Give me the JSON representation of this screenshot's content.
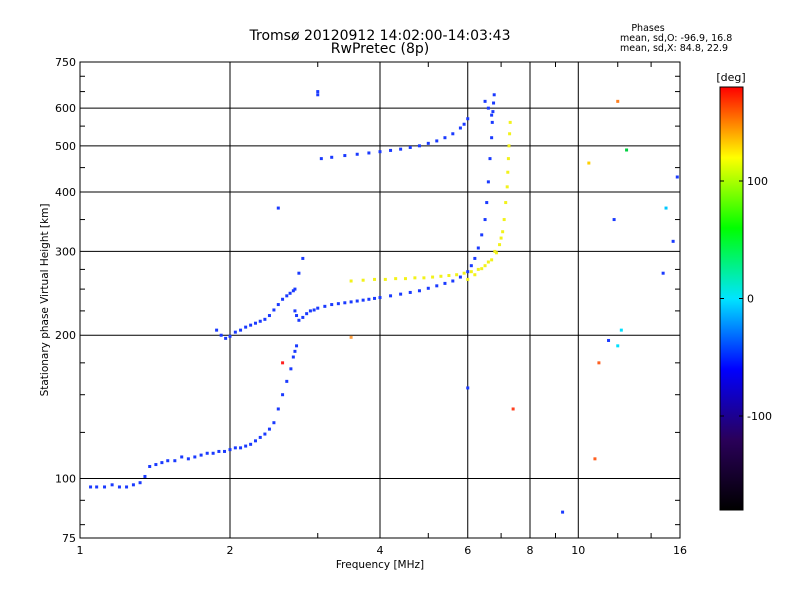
{
  "window": {
    "title_line1": "Tromsø 20120912 14:02:00-14:03:43",
    "title_line2": "RwPretec (8p)"
  },
  "stats": {
    "heading": "Phases",
    "line1": "mean, sd,O: -96.9, 16.8",
    "line2": "mean, sd,X:  84.8, 22.9"
  },
  "colorbar": {
    "label": "[deg]",
    "ticks": [
      "100",
      "0",
      "-100"
    ],
    "tick_values": [
      100,
      0,
      -100
    ],
    "range": [
      -180,
      180
    ],
    "colors": [
      "#000000",
      "#2a005a",
      "#0000ff",
      "#00e5ff",
      "#00ff00",
      "#ffff00",
      "#ff0000"
    ]
  },
  "chart_data": {
    "type": "scatter",
    "xlabel": "Frequency [MHz]",
    "ylabel": "Stationary phase Virtual Height [km]",
    "xscale": "log",
    "yscale": "log",
    "xlim": [
      1,
      16
    ],
    "ylim": [
      75,
      750
    ],
    "xticks": [
      1,
      2,
      4,
      6,
      8,
      10,
      16
    ],
    "xtick_labels": [
      "1",
      "2",
      "4",
      "6",
      "8",
      "10",
      "16"
    ],
    "yticks": [
      75,
      100,
      200,
      300,
      400,
      500,
      600,
      750
    ],
    "ytick_labels": [
      "75",
      "100",
      "200",
      "300",
      "400",
      "500",
      "600",
      "750"
    ],
    "grid": true,
    "series": [
      {
        "mode": "O",
        "color": "#1a3aff",
        "x": [
          1.05,
          1.08,
          1.12,
          1.16,
          1.2,
          1.24,
          1.28,
          1.32,
          1.35,
          1.38,
          1.42,
          1.46,
          1.5,
          1.55,
          1.6,
          1.65,
          1.7,
          1.75,
          1.8,
          1.85,
          1.9,
          1.95,
          2.0,
          2.05,
          2.1,
          2.15,
          2.2,
          2.25,
          2.3,
          2.35,
          2.4,
          2.45,
          2.5,
          2.55,
          2.6,
          2.65,
          2.68,
          2.7,
          2.72,
          1.88,
          1.92,
          1.96,
          2.0,
          2.05,
          2.1,
          2.15,
          2.2,
          2.25,
          2.3,
          2.35,
          2.4,
          2.45,
          2.5,
          2.55,
          2.6,
          2.64,
          2.68,
          2.7,
          2.72,
          2.75,
          2.8,
          2.85,
          2.9,
          2.95,
          3.0,
          3.1,
          3.2,
          3.3,
          3.4,
          3.5,
          3.6,
          3.7,
          3.8,
          3.9,
          4.0,
          4.2,
          4.4,
          4.6,
          4.8,
          5.0,
          5.2,
          5.4,
          5.6,
          5.8,
          6.0,
          6.1,
          6.2,
          6.3,
          6.4,
          6.5,
          6.55,
          6.6,
          6.65,
          6.7,
          6.72,
          6.74,
          6.76,
          6.78,
          3.05,
          3.2,
          3.4,
          3.6,
          3.8,
          4.0,
          4.2,
          4.4,
          4.6,
          4.8,
          5.0,
          5.2,
          5.4,
          5.6,
          5.8,
          5.9,
          6.0,
          2.7,
          2.75,
          2.8,
          3.0,
          6.5,
          6.6,
          6.7
        ],
        "y": [
          96,
          96,
          96,
          97,
          96,
          96,
          97,
          98,
          101,
          106,
          107,
          108,
          109,
          109,
          111,
          110,
          111,
          112,
          113,
          113,
          114,
          114,
          115,
          116,
          116,
          117,
          118,
          120,
          122,
          124,
          127,
          131,
          140,
          150,
          160,
          170,
          180,
          185,
          190,
          205,
          200,
          197,
          199,
          203,
          205,
          208,
          210,
          212,
          214,
          216,
          220,
          226,
          232,
          238,
          242,
          245,
          248,
          225,
          220,
          215,
          218,
          222,
          225,
          226,
          228,
          230,
          232,
          233,
          234,
          235,
          236,
          237,
          238,
          239,
          240,
          242,
          244,
          246,
          248,
          251,
          254,
          257,
          260,
          265,
          272,
          280,
          290,
          305,
          325,
          350,
          380,
          420,
          470,
          520,
          560,
          590,
          615,
          640,
          470,
          473,
          477,
          480,
          483,
          486,
          489,
          492,
          496,
          500,
          506,
          512,
          520,
          530,
          545,
          555,
          570,
          250,
          270,
          290,
          650,
          620,
          600,
          580
        ]
      },
      {
        "mode": "X",
        "color": "#f2f21a",
        "x": [
          3.5,
          3.7,
          3.9,
          4.1,
          4.3,
          4.5,
          4.7,
          4.9,
          5.1,
          5.3,
          5.5,
          5.7,
          5.9,
          6.1,
          6.3,
          6.5,
          6.7,
          6.85,
          6.95,
          7.05,
          7.1,
          7.15,
          7.2,
          7.22,
          7.24,
          7.26,
          7.28,
          7.3,
          6.0,
          6.2,
          6.4,
          6.6,
          6.8,
          7.0
        ],
        "y": [
          260,
          261,
          262,
          262,
          263,
          263,
          264,
          264,
          265,
          266,
          267,
          268,
          270,
          272,
          275,
          280,
          288,
          298,
          310,
          330,
          350,
          380,
          410,
          440,
          470,
          500,
          530,
          560,
          262,
          268,
          276,
          285,
          300,
          320
        ]
      },
      {
        "mode": "scattered",
        "x": [
          3.0,
          2.5,
          2.55,
          6.0,
          7.4,
          9.3,
          10.8,
          11.0,
          11.5,
          12.0,
          12.2,
          12.5,
          14.8,
          15.0,
          15.5,
          15.8,
          11.8,
          10.5,
          12.0,
          3.5
        ],
        "y": [
          640,
          370,
          175,
          155,
          140,
          85,
          110,
          175,
          195,
          190,
          205,
          490,
          270,
          370,
          315,
          430,
          350,
          460,
          620,
          198
        ],
        "colors": [
          "#1a3aff",
          "#1a3aff",
          "#ff2020",
          "#1a3aff",
          "#ff4020",
          "#1a3aff",
          "#ff6020",
          "#ff6020",
          "#1a3aff",
          "#00e0ff",
          "#00e0ff",
          "#00d040",
          "#1a3aff",
          "#00c8ff",
          "#1a3aff",
          "#1a3aff",
          "#1a3aff",
          "#ffd000",
          "#ff8020",
          "#ffa040"
        ]
      }
    ]
  }
}
